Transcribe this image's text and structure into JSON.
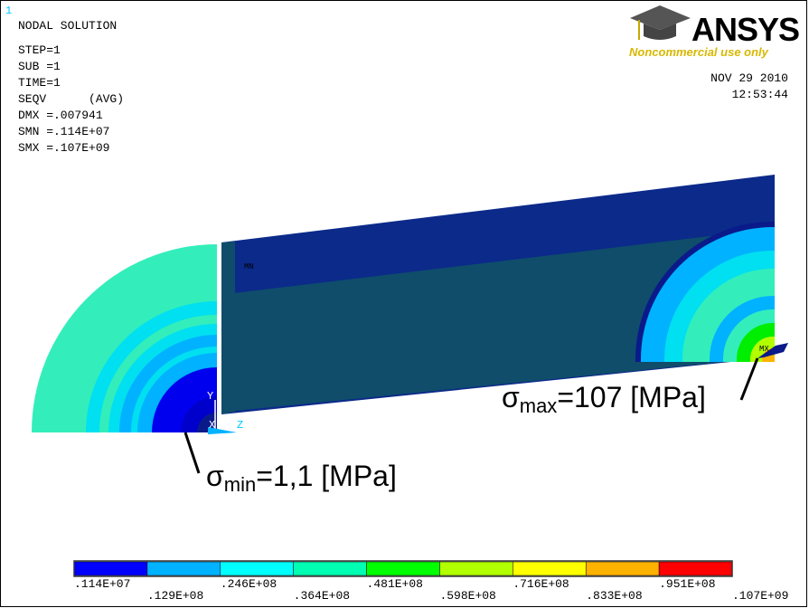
{
  "window_number": "1",
  "title": "NODAL SOLUTION",
  "info": [
    "STEP=1",
    "SUB =1",
    "TIME=1",
    "SEQV      (AVG)",
    "DMX =.007941",
    "SMN =.114E+07",
    "SMX =.107E+09"
  ],
  "logo": {
    "name": "ANSYS",
    "note": "Noncommercial use only"
  },
  "date": "NOV 29 2010",
  "time": "12:53:44",
  "axes": {
    "y": "Y",
    "x": "X",
    "z": "Z"
  },
  "node_labels": {
    "min": "MN",
    "max": "MX"
  },
  "annotations": {
    "min": {
      "symbol": "σ",
      "subscript": "min",
      "text": "=1,1 [MPa]"
    },
    "max": {
      "symbol": "σ",
      "subscript": "max",
      "text": "=107 [MPa]"
    }
  },
  "legend": {
    "colors": [
      "#0000ff",
      "#00b2ff",
      "#00ffff",
      "#00ffb2",
      "#00ff00",
      "#b2ff00",
      "#ffff00",
      "#ffb200",
      "#ff0000"
    ],
    "labels": [
      ".114E+07",
      ".129E+08",
      ".246E+08",
      ".364E+08",
      ".481E+08",
      ".598E+08",
      ".716E+08",
      ".833E+08",
      ".951E+08",
      ".107E+09"
    ]
  }
}
